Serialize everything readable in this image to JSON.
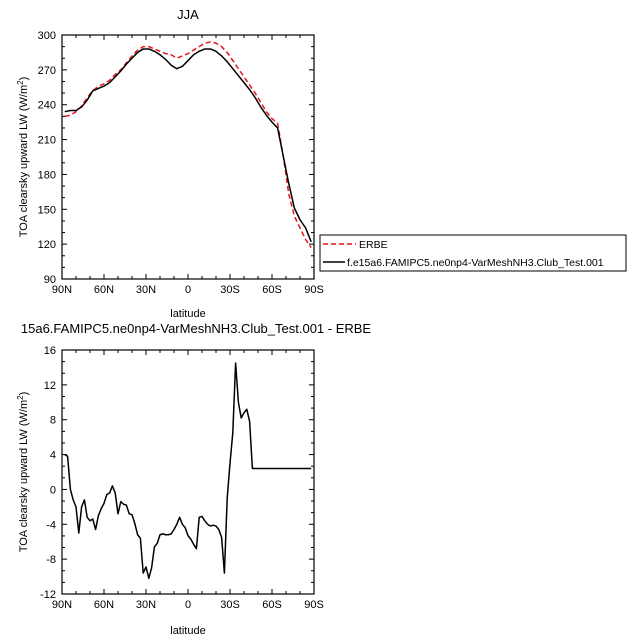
{
  "chart_data": [
    {
      "type": "line",
      "title": "JJA",
      "xlabel": "latitude",
      "ylabel": "TOA clearsky upward LW (W/m",
      "ylabel_sup": "2",
      "ylabel_close": ")",
      "xlim": [
        90,
        -90
      ],
      "ylim": [
        90,
        300
      ],
      "x_ticks": [
        90,
        60,
        30,
        0,
        -30,
        -60,
        -90
      ],
      "x_tick_labels": [
        "90N",
        "60N",
        "30N",
        "0",
        "30S",
        "60S",
        "90S"
      ],
      "y_ticks": [
        90,
        120,
        150,
        180,
        210,
        240,
        270,
        300
      ],
      "y_tick_labels": [
        "90",
        "120",
        "150",
        "180",
        "210",
        "240",
        "270",
        "300"
      ],
      "grid": false,
      "legend_position": "right",
      "series": [
        {
          "name": "ERBE",
          "color": "#e8141a",
          "dash": true,
          "x": [
            88,
            84,
            80,
            76,
            72,
            68,
            64,
            60,
            56,
            52,
            48,
            44,
            40,
            36,
            32,
            28,
            24,
            20,
            16,
            12,
            8,
            4,
            0,
            -4,
            -8,
            -12,
            -16,
            -20,
            -24,
            -28,
            -32,
            -36,
            -40,
            -44,
            -48,
            -52,
            -56,
            -60,
            -64,
            -68,
            -72,
            -76,
            -80,
            -84,
            -88
          ],
          "values": [
            230,
            231,
            234,
            239,
            246,
            252,
            256,
            258,
            261,
            266,
            270,
            276,
            282,
            287,
            290,
            290,
            288,
            286,
            284,
            283,
            280,
            282,
            284,
            287,
            290,
            293,
            294,
            293,
            290,
            285,
            278,
            271,
            264,
            257,
            250,
            242,
            234,
            228,
            224,
            196,
            163,
            144,
            134,
            124,
            117
          ]
        },
        {
          "name": "f.e15a6.FAMIPC5.ne0np4-VarMeshNH3.Club_Test.001",
          "color": "#000000",
          "dash": false,
          "x": [
            88,
            84,
            80,
            76,
            72,
            68,
            64,
            60,
            56,
            52,
            48,
            44,
            40,
            36,
            32,
            28,
            24,
            20,
            16,
            12,
            8,
            4,
            0,
            -4,
            -8,
            -12,
            -16,
            -20,
            -24,
            -28,
            -32,
            -36,
            -40,
            -44,
            -48,
            -52,
            -56,
            -60,
            -64,
            -68,
            -72,
            -76,
            -80,
            -84,
            -88
          ],
          "values": [
            234,
            235,
            235,
            238,
            244,
            252,
            254,
            256,
            259,
            264,
            269,
            275,
            280,
            285,
            288,
            288,
            286,
            283,
            279,
            274,
            271,
            273,
            278,
            283,
            286,
            288,
            288,
            286,
            282,
            277,
            271,
            265,
            259,
            253,
            246,
            238,
            231,
            225,
            220,
            196,
            172,
            151,
            141,
            134,
            122
          ]
        }
      ]
    },
    {
      "type": "line",
      "title": "15a6.FAMIPC5.ne0np4-VarMeshNH3.Club_Test.001 - ERBE",
      "xlabel": "latitude",
      "ylabel": "TOA clearsky upward LW (W/m",
      "ylabel_sup": "2",
      "ylabel_close": ")",
      "xlim": [
        90,
        -90
      ],
      "ylim": [
        -12,
        16
      ],
      "x_ticks": [
        90,
        60,
        30,
        0,
        -30,
        -60,
        -90
      ],
      "x_tick_labels": [
        "90N",
        "60N",
        "30N",
        "0",
        "30S",
        "60S",
        "90S"
      ],
      "y_ticks": [
        -12,
        -8,
        -4,
        0,
        4,
        8,
        12,
        16
      ],
      "y_tick_labels": [
        "-12",
        "-8",
        "-4",
        "0",
        "4",
        "8",
        "12",
        "16"
      ],
      "grid": false,
      "series": [
        {
          "color": "#000000",
          "x": [
            88,
            86,
            84,
            82,
            80,
            78,
            76,
            74,
            72,
            70,
            68,
            66,
            64,
            62,
            60,
            58,
            56,
            54,
            52,
            50,
            48,
            46,
            44,
            42,
            40,
            38,
            36,
            34,
            32,
            30,
            28,
            26,
            24,
            22,
            20,
            18,
            16,
            14,
            12,
            10,
            8,
            6,
            4,
            2,
            0,
            -2,
            -4,
            -6,
            -8,
            -10,
            -12,
            -14,
            -16,
            -18,
            -20,
            -22,
            -24,
            -26,
            -28,
            -30,
            -32,
            -34,
            -36,
            -38,
            -40,
            -42,
            -44,
            -46,
            -48,
            -50,
            -52,
            -54,
            -56,
            -58,
            -60,
            -62,
            -64,
            -66,
            -68,
            -70,
            -72,
            -74,
            -76,
            -78,
            -80,
            -82,
            -84,
            -86,
            -88
          ],
          "values": [
            4.0,
            3.8,
            0.0,
            -1.2,
            -2.0,
            -5.0,
            -2.0,
            -1.2,
            -3.2,
            -3.6,
            -3.4,
            -4.6,
            -3.0,
            -2.2,
            -1.6,
            -0.6,
            -0.4,
            0.4,
            -0.4,
            -2.8,
            -1.4,
            -1.7,
            -1.8,
            -2.8,
            -2.9,
            -3.9,
            -5.2,
            -5.6,
            -9.6,
            -8.9,
            -10.2,
            -9.0,
            -6.6,
            -6.2,
            -5.2,
            -5.1,
            -5.2,
            -5.2,
            -5.1,
            -4.6,
            -4.0,
            -3.2,
            -4.0,
            -4.4,
            -5.3,
            -5.7,
            -6.3,
            -6.8,
            -3.2,
            -3.1,
            -3.6,
            -4.0,
            -4.2,
            -4.1,
            -4.2,
            -4.6,
            -5.5,
            -9.6,
            -1.0,
            3.0,
            6.5,
            14.5,
            10.0,
            8.2,
            8.8,
            9.2,
            7.8,
            2.4,
            2.4,
            2.4,
            2.4,
            2.4,
            2.4,
            2.4,
            2.4,
            2.4,
            2.4,
            2.4,
            2.4,
            2.4,
            2.4,
            2.4,
            2.4,
            2.4,
            2.4,
            2.4,
            2.4,
            2.4,
            2.4
          ]
        }
      ]
    }
  ]
}
